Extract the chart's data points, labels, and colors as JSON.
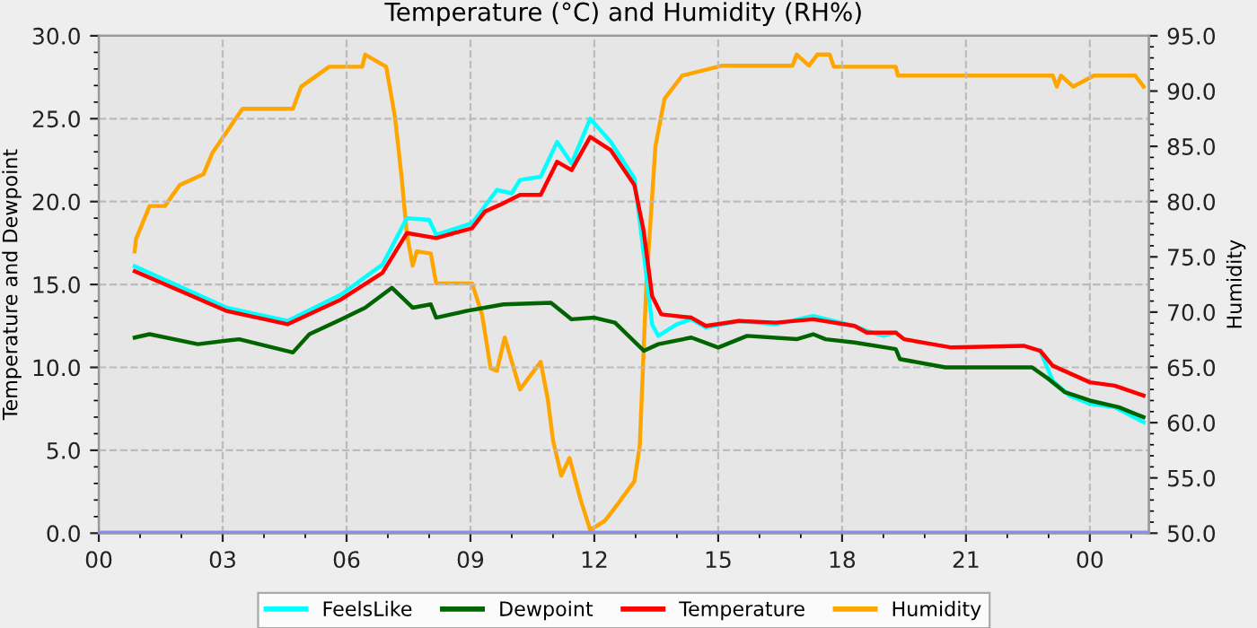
{
  "chart_data": {
    "type": "line",
    "title": "Temperature (°C) and Humidity (RH%)",
    "ylabel": "Temperature and Dewpoint",
    "y2label": "Humidity",
    "xlim": [
      0,
      25.43
    ],
    "xticks": [
      {
        "value": 0,
        "label": "00"
      },
      {
        "value": 3,
        "label": "03"
      },
      {
        "value": 6,
        "label": "06"
      },
      {
        "value": 9,
        "label": "09"
      },
      {
        "value": 12,
        "label": "12"
      },
      {
        "value": 15,
        "label": "15"
      },
      {
        "value": 18,
        "label": "18"
      },
      {
        "value": 21,
        "label": "21"
      },
      {
        "value": 24,
        "label": "00"
      }
    ],
    "ylim": [
      0,
      30
    ],
    "yticks": [
      {
        "value": 0,
        "label": "0.0"
      },
      {
        "value": 5,
        "label": "5.0"
      },
      {
        "value": 10,
        "label": "10.0"
      },
      {
        "value": 15,
        "label": "15.0"
      },
      {
        "value": 20,
        "label": "20.0"
      },
      {
        "value": 25,
        "label": "25.0"
      },
      {
        "value": 30,
        "label": "30.0"
      }
    ],
    "y2lim": [
      50,
      95
    ],
    "y2ticks": [
      {
        "value": 50,
        "label": "50.0"
      },
      {
        "value": 55,
        "label": "55.0"
      },
      {
        "value": 60,
        "label": "60.0"
      },
      {
        "value": 65,
        "label": "65.0"
      },
      {
        "value": 70,
        "label": "70.0"
      },
      {
        "value": 75,
        "label": "75.0"
      },
      {
        "value": 80,
        "label": "80.0"
      },
      {
        "value": 85,
        "label": "85.0"
      },
      {
        "value": 90,
        "label": "90.0"
      },
      {
        "value": 95,
        "label": "95.0"
      }
    ],
    "grid": true,
    "legend": "bottom",
    "line_style": "solid",
    "marker": "none",
    "ref_lines": [
      {
        "axis": "y",
        "value": 0,
        "color": "#8c8cf0"
      }
    ],
    "series": [
      {
        "name": "FeelsLike",
        "color": "#00ffff",
        "x": [
          0.87,
          3.1,
          4.57,
          5.87,
          6.87,
          7.46,
          8.0,
          8.17,
          9.04,
          9.64,
          10.0,
          10.2,
          10.7,
          11.1,
          11.45,
          11.9,
          12.4,
          12.97,
          13.19,
          13.4,
          13.55,
          14.0,
          14.35,
          14.7,
          15.5,
          16.4,
          17.3,
          18.3,
          18.6,
          19.0,
          19.3,
          19.5,
          20.65,
          22.4,
          22.8,
          23.1,
          23.5,
          24.0,
          24.6,
          25.3
        ],
        "values": [
          16.1,
          13.6,
          12.8,
          14.4,
          16.2,
          19.0,
          18.9,
          18.0,
          18.7,
          20.7,
          20.5,
          21.3,
          21.5,
          23.6,
          22.3,
          25.0,
          23.6,
          21.4,
          17.0,
          12.6,
          11.9,
          12.6,
          12.9,
          12.4,
          12.8,
          12.6,
          13.1,
          12.5,
          12.2,
          11.9,
          12.1,
          null,
          null,
          null,
          11.0,
          9.2,
          8.3,
          7.8,
          7.6,
          6.7
        ]
      },
      {
        "name": "Dewpoint",
        "color": "#006400",
        "x": [
          0.87,
          1.23,
          2.4,
          3.4,
          4.7,
          5.1,
          5.87,
          6.45,
          7.1,
          7.6,
          8.04,
          8.17,
          8.9,
          9.8,
          10.95,
          11.45,
          12.0,
          12.5,
          13.2,
          13.55,
          14.35,
          15.0,
          15.7,
          16.9,
          17.3,
          17.6,
          18.3,
          19.3,
          19.4,
          20.5,
          22.6,
          23.0,
          23.4,
          24.0,
          24.7,
          25.3
        ],
        "values": [
          11.8,
          12.0,
          11.4,
          11.7,
          10.9,
          12.0,
          12.9,
          13.6,
          14.8,
          13.6,
          13.8,
          13.0,
          13.4,
          13.8,
          13.9,
          12.9,
          13.0,
          12.7,
          11.0,
          11.4,
          11.8,
          11.2,
          11.9,
          11.7,
          12.0,
          11.7,
          11.5,
          11.1,
          10.5,
          10.0,
          10.0,
          9.3,
          8.5,
          8.0,
          7.6,
          7.0
        ]
      },
      {
        "name": "Temperature",
        "color": "#ff0000",
        "x": [
          0.87,
          3.1,
          4.57,
          5.87,
          6.87,
          7.46,
          8.17,
          9.04,
          9.35,
          9.71,
          10.2,
          10.7,
          11.1,
          11.45,
          11.9,
          12.4,
          12.97,
          13.19,
          13.4,
          13.62,
          14.35,
          14.7,
          15.5,
          16.4,
          17.3,
          18.3,
          18.6,
          19.3,
          19.5,
          20.65,
          22.4,
          22.8,
          23.1,
          24.0,
          24.6,
          25.3
        ],
        "values": [
          15.8,
          13.4,
          12.6,
          14.1,
          15.7,
          18.1,
          17.8,
          18.4,
          19.4,
          19.8,
          20.4,
          20.4,
          22.4,
          21.9,
          23.9,
          23.1,
          21.0,
          18.3,
          14.3,
          13.2,
          13.0,
          12.5,
          12.8,
          12.7,
          12.9,
          12.5,
          12.1,
          12.1,
          11.7,
          11.2,
          11.3,
          11.0,
          10.1,
          9.1,
          8.9,
          8.3
        ]
      },
      {
        "name": "Humidity",
        "color": "#ffa500",
        "axis": "y2",
        "x": [
          0.87,
          0.9,
          1.23,
          1.6,
          1.96,
          2.54,
          2.75,
          3.26,
          3.48,
          4.7,
          4.9,
          5.58,
          6.38,
          6.45,
          6.96,
          7.17,
          7.33,
          7.46,
          7.6,
          7.7,
          8.04,
          8.17,
          9.04,
          9.28,
          9.49,
          9.64,
          9.83,
          10.2,
          10.7,
          10.87,
          11.0,
          11.2,
          11.4,
          11.67,
          11.9,
          12.25,
          12.6,
          12.97,
          13.1,
          13.26,
          13.48,
          13.7,
          14.13,
          15.1,
          16.8,
          16.9,
          17.2,
          17.4,
          17.7,
          17.8,
          19.3,
          19.35,
          22.5,
          23.1,
          23.2,
          23.3,
          23.6,
          24.1,
          25.1,
          25.3
        ],
        "values": [
          75.5,
          76.6,
          79.6,
          79.6,
          81.5,
          82.5,
          84.4,
          87.2,
          88.4,
          88.4,
          90.4,
          92.2,
          92.2,
          93.3,
          92.2,
          87.7,
          82.3,
          77.1,
          74.2,
          75.5,
          75.3,
          72.6,
          72.6,
          69.8,
          64.9,
          64.7,
          67.7,
          63.0,
          65.5,
          62.2,
          58.4,
          55.2,
          56.8,
          53.0,
          50.3,
          51.1,
          52.8,
          54.7,
          57.9,
          72.5,
          85.0,
          89.3,
          91.4,
          92.3,
          92.3,
          93.3,
          92.3,
          93.3,
          93.3,
          92.2,
          92.2,
          91.4,
          91.4,
          91.4,
          90.4,
          91.4,
          90.4,
          91.4,
          91.4,
          90.4
        ]
      }
    ]
  }
}
